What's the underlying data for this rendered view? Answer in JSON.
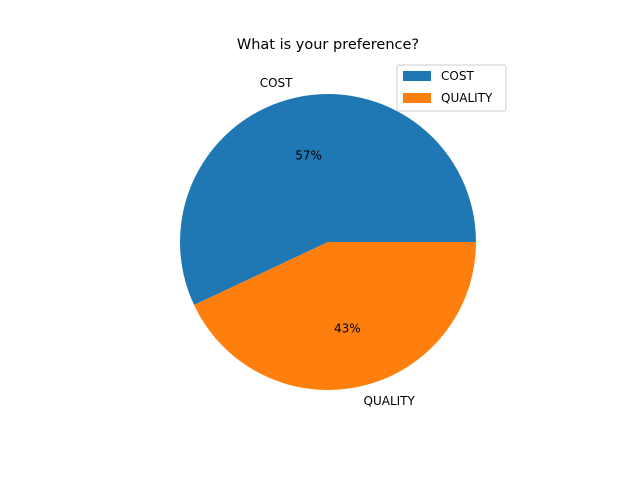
{
  "chart_data": {
    "type": "pie",
    "title": "What is your preference?",
    "categories": [
      "COST",
      "QUALITY"
    ],
    "values": [
      57,
      43
    ],
    "value_labels": [
      "57%",
      "43%"
    ],
    "colors": [
      "#1f77b4",
      "#ff7f0e"
    ],
    "start_angle_deg": 0,
    "direction": "counterclockwise",
    "legend": {
      "position": "upper-right",
      "entries": [
        "COST",
        "QUALITY"
      ]
    }
  }
}
